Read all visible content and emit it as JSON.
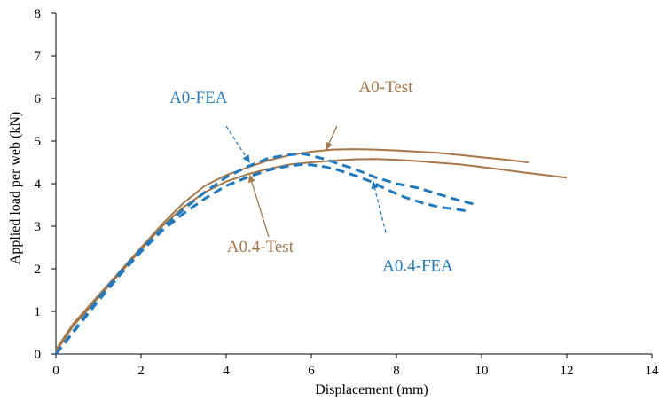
{
  "chart_data": {
    "type": "line",
    "title": "",
    "xlabel": "Displacement (mm)",
    "ylabel": "Applied load per web (kN)",
    "xlim": [
      0,
      14
    ],
    "ylim": [
      0,
      8
    ],
    "xticks": [
      0,
      2,
      4,
      6,
      8,
      10,
      12,
      14
    ],
    "yticks": [
      0,
      1,
      2,
      3,
      4,
      5,
      6,
      7,
      8
    ],
    "grid": false,
    "legend": "inline annotations with arrows",
    "colors": {
      "test": "#A87545",
      "fea": "#1F7AC4"
    },
    "series": [
      {
        "name": "A0-Test",
        "style": "solid",
        "color": "#A87545",
        "x": [
          0,
          0.2,
          0.4,
          0.8,
          1.2,
          1.6,
          2.0,
          2.5,
          3.0,
          3.5,
          4.0,
          4.5,
          5.0,
          5.5,
          6.0,
          6.5,
          7.0,
          7.5,
          8.0,
          8.5,
          9.0,
          9.5,
          10.0,
          10.5,
          11.1
        ],
        "y": [
          0.1,
          0.4,
          0.7,
          1.15,
          1.6,
          2.05,
          2.5,
          3.05,
          3.55,
          3.95,
          4.2,
          4.38,
          4.55,
          4.67,
          4.75,
          4.8,
          4.81,
          4.8,
          4.78,
          4.75,
          4.72,
          4.67,
          4.62,
          4.57,
          4.5
        ]
      },
      {
        "name": "A0.4-Test",
        "style": "solid",
        "color": "#A87545",
        "x": [
          0,
          0.2,
          0.4,
          0.8,
          1.2,
          1.6,
          2.0,
          2.5,
          3.0,
          3.5,
          4.0,
          4.5,
          5.0,
          5.5,
          6.0,
          6.5,
          7.0,
          7.5,
          8.0,
          8.5,
          9.0,
          9.5,
          10.0,
          10.5,
          11.0,
          11.5,
          12.0
        ],
        "y": [
          0.05,
          0.35,
          0.65,
          1.1,
          1.55,
          2.0,
          2.45,
          3.0,
          3.45,
          3.8,
          4.05,
          4.22,
          4.35,
          4.45,
          4.5,
          4.54,
          4.57,
          4.58,
          4.56,
          4.53,
          4.49,
          4.45,
          4.39,
          4.33,
          4.26,
          4.2,
          4.14
        ]
      },
      {
        "name": "A0-FEA",
        "style": "dashed",
        "color": "#1F7AC4",
        "x": [
          0,
          0.5,
          1.0,
          1.5,
          2.0,
          2.5,
          3.0,
          3.5,
          4.0,
          4.5,
          5.0,
          5.5,
          5.8,
          6.0,
          6.3,
          6.6,
          7.0,
          7.5,
          8.0,
          8.5,
          9.0,
          9.5,
          9.9
        ],
        "y": [
          0,
          0.65,
          1.3,
          1.9,
          2.45,
          2.95,
          3.4,
          3.8,
          4.15,
          4.4,
          4.6,
          4.68,
          4.7,
          4.66,
          4.58,
          4.48,
          4.35,
          4.15,
          4.0,
          3.9,
          3.75,
          3.6,
          3.5
        ]
      },
      {
        "name": "A0.4-FEA",
        "style": "dashed",
        "color": "#1F7AC4",
        "x": [
          0,
          0.5,
          1.0,
          1.5,
          2.0,
          2.5,
          3.0,
          3.5,
          4.0,
          4.5,
          5.0,
          5.5,
          5.8,
          6.0,
          6.3,
          6.6,
          7.0,
          7.4,
          7.8,
          8.2,
          8.6,
          9.0,
          9.4,
          9.7
        ],
        "y": [
          0,
          0.62,
          1.25,
          1.85,
          2.4,
          2.9,
          3.3,
          3.65,
          3.95,
          4.15,
          4.32,
          4.42,
          4.45,
          4.44,
          4.4,
          4.33,
          4.2,
          4.05,
          3.85,
          3.68,
          3.55,
          3.45,
          3.4,
          3.35
        ]
      }
    ],
    "annotations": [
      {
        "text": "A0-Test",
        "color": "#A87545",
        "style": "solid",
        "label_xy": [
          7.75,
          6.15
        ],
        "arrow_from": [
          6.6,
          5.35
        ],
        "arrow_to": [
          6.35,
          4.8
        ]
      },
      {
        "text": "A0-FEA",
        "color": "#1F7AC4",
        "style": "dashed",
        "label_xy": [
          3.35,
          5.9
        ],
        "arrow_from": [
          4.0,
          5.35
        ],
        "arrow_to": [
          4.55,
          4.5
        ]
      },
      {
        "text": "A0.4-Test",
        "color": "#A87545",
        "style": "solid",
        "label_xy": [
          4.8,
          2.4
        ],
        "arrow_from": [
          5.0,
          2.75
        ],
        "arrow_to": [
          4.55,
          4.2
        ]
      },
      {
        "text": "A0.4-FEA",
        "color": "#1F7AC4",
        "style": "dashed",
        "label_xy": [
          8.5,
          1.95
        ],
        "arrow_from": [
          7.75,
          2.85
        ],
        "arrow_to": [
          7.45,
          4.05
        ]
      }
    ]
  }
}
